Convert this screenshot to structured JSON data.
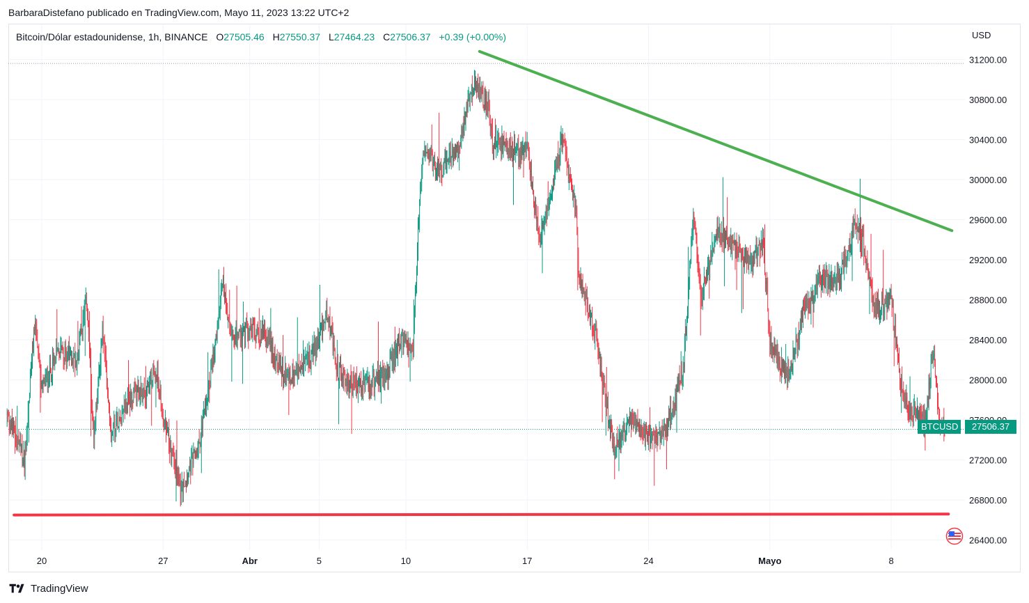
{
  "attribution": "BarbaraDistefano publicado en TradingView.com, Mayo 11, 2023 13:22 UTC+2",
  "legend": {
    "symbol": "Bitcoin/Dólar estadounidense, 1h, BINANCE",
    "open_label": "O",
    "open": "27505.46",
    "high_label": "H",
    "high": "27550.37",
    "low_label": "L",
    "low": "27464.23",
    "close_label": "C",
    "close": "27506.37",
    "change": "+0.39 (+0.00%)"
  },
  "currency": "USD",
  "price_tag": {
    "symbol": "BTCUSD",
    "value": "27506.37"
  },
  "footer": {
    "brand": "TradingView"
  },
  "icons": {
    "logo": "tradingview-logo-icon",
    "flag": "us-flag-icon"
  },
  "colors": {
    "up": "#089981",
    "down": "#f23645",
    "trend_resistance": "#4caf50",
    "support": "#f23645",
    "grid": "#f0f3fa",
    "axis_text": "#131722"
  },
  "chart_data": {
    "type": "candlestick",
    "title": "",
    "symbol": "BTCUSD",
    "interval": "1h",
    "exchange": "BINANCE",
    "ylim": [
      26300,
      31550
    ],
    "y_ticks": [
      26400,
      26800,
      27200,
      27600,
      28000,
      28400,
      28800,
      29200,
      29600,
      30000,
      30400,
      30800,
      31200
    ],
    "y_tick_labels": [
      "26400.00",
      "26800.00",
      "27200.00",
      "27600.00",
      "28000.00",
      "28400.00",
      "28800.00",
      "29200.00",
      "29600.00",
      "30000.00",
      "30400.00",
      "30800.00",
      "31200.00"
    ],
    "x_range": [
      "2023-03-18",
      "2023-05-11"
    ],
    "x_ticks": [
      {
        "label": "20",
        "date": "2023-03-20",
        "bold": false
      },
      {
        "label": "27",
        "date": "2023-03-27",
        "bold": false
      },
      {
        "label": "Abr",
        "date": "2023-04-01",
        "bold": true
      },
      {
        "label": "5",
        "date": "2023-04-05",
        "bold": false
      },
      {
        "label": "10",
        "date": "2023-04-10",
        "bold": false
      },
      {
        "label": "17",
        "date": "2023-04-17",
        "bold": false
      },
      {
        "label": "24",
        "date": "2023-04-24",
        "bold": false
      },
      {
        "label": "Mayo",
        "date": "2023-05-01",
        "bold": true
      },
      {
        "label": "8",
        "date": "2023-05-08",
        "bold": false
      }
    ],
    "last_price": 27506.37,
    "dotted_high_line": 31160,
    "anchors": [
      [
        "2023-03-18",
        27650
      ],
      [
        "2023-03-19",
        27200
      ],
      [
        "2023-03-19.6",
        28600
      ],
      [
        "2023-03-20",
        27900
      ],
      [
        "2023-03-21",
        28300
      ],
      [
        "2023-03-22",
        28200
      ],
      [
        "2023-03-22.6",
        28800
      ],
      [
        "2023-03-23",
        27400
      ],
      [
        "2023-03-23.5",
        28500
      ],
      [
        "2023-03-24",
        27500
      ],
      [
        "2023-03-25",
        27800
      ],
      [
        "2023-03-26",
        27900
      ],
      [
        "2023-03-26.6",
        28100
      ],
      [
        "2023-03-27",
        27600
      ],
      [
        "2023-03-27.8",
        27100
      ],
      [
        "2023-03-28",
        26900
      ],
      [
        "2023-03-29",
        27300
      ],
      [
        "2023-03-30",
        28300
      ],
      [
        "2023-03-30.4",
        29000
      ],
      [
        "2023-03-31",
        28400
      ],
      [
        "2023-04-01",
        28500
      ],
      [
        "2023-04-02",
        28400
      ],
      [
        "2023-04-03",
        28000
      ],
      [
        "2023-04-04",
        28100
      ],
      [
        "2023-04-05",
        28400
      ],
      [
        "2023-04-05.5",
        28700
      ],
      [
        "2023-04-06",
        28100
      ],
      [
        "2023-04-07",
        27950
      ],
      [
        "2023-04-08",
        27950
      ],
      [
        "2023-04-09",
        28100
      ],
      [
        "2023-04-09.8",
        28400
      ],
      [
        "2023-04-10.4",
        28300
      ],
      [
        "2023-04-10.8",
        29800
      ],
      [
        "2023-04-11",
        30300
      ],
      [
        "2023-04-12",
        30100
      ],
      [
        "2023-04-13",
        30300
      ],
      [
        "2023-04-14",
        31000
      ],
      [
        "2023-04-14.8",
        30700
      ],
      [
        "2023-04-15",
        30400
      ],
      [
        "2023-04-16",
        30300
      ],
      [
        "2023-04-17",
        30300
      ],
      [
        "2023-04-17.7",
        29400
      ],
      [
        "2023-04-18",
        29600
      ],
      [
        "2023-04-19",
        30400
      ],
      [
        "2023-04-19.8",
        29700
      ],
      [
        "2023-04-20",
        29000
      ],
      [
        "2023-04-21",
        28400
      ],
      [
        "2023-04-21.8",
        27500
      ],
      [
        "2023-04-22",
        27300
      ],
      [
        "2023-04-23",
        27600
      ],
      [
        "2023-04-24",
        27400
      ],
      [
        "2023-04-25",
        27500
      ],
      [
        "2023-04-26",
        28100
      ],
      [
        "2023-04-26.6",
        29700
      ],
      [
        "2023-04-27",
        28800
      ],
      [
        "2023-04-28",
        29500
      ],
      [
        "2023-04-29",
        29300
      ],
      [
        "2023-04-30",
        29200
      ],
      [
        "2023-04-30.6",
        29400
      ],
      [
        "2023-05-01",
        28400
      ],
      [
        "2023-05-02",
        28000
      ],
      [
        "2023-05-03",
        28700
      ],
      [
        "2023-05-04",
        29000
      ],
      [
        "2023-05-05",
        29000
      ],
      [
        "2023-05-06",
        29600
      ],
      [
        "2023-05-06.6",
        29200
      ],
      [
        "2023-05-07",
        28700
      ],
      [
        "2023-05-08",
        28800
      ],
      [
        "2023-05-08.5",
        28000
      ],
      [
        "2023-05-09",
        27700
      ],
      [
        "2023-05-10",
        27600
      ],
      [
        "2023-05-10.4",
        28300
      ],
      [
        "2023-05-10.8",
        27600
      ],
      [
        "2023-05-11.1",
        27506
      ]
    ],
    "trend_lines": [
      {
        "role": "resistance",
        "color": "#4caf50",
        "from": [
          "2023-04-14.25",
          31280
        ],
        "to": [
          "2023-05-11.5",
          29490
        ]
      },
      {
        "role": "support",
        "color": "#f23645",
        "from": [
          "2023-03-18.4",
          26650
        ],
        "to": [
          "2023-05-11.3",
          26660
        ]
      }
    ]
  }
}
